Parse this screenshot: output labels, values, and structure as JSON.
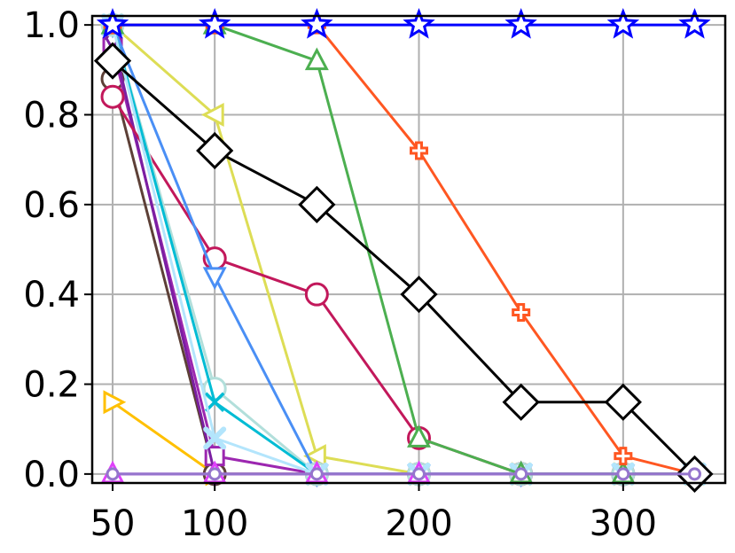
{
  "chart_data": {
    "type": "line",
    "title": "",
    "xlabel": "",
    "ylabel": "",
    "xlim": [
      40,
      350
    ],
    "ylim": [
      -0.02,
      1.02
    ],
    "grid": true,
    "xticks": [
      50,
      100,
      200,
      300
    ],
    "xtick_labels": [
      "50",
      "100",
      "200",
      "300"
    ],
    "yticks": [
      0.0,
      0.2,
      0.4,
      0.6,
      0.8,
      1.0
    ],
    "ytick_labels": [
      "0.0",
      "0.2",
      "0.4",
      "0.6",
      "0.8",
      "1.0"
    ],
    "series": [
      {
        "color": "#dddd55",
        "marker": "triangle-left",
        "x": [
          50,
          100,
          150,
          200,
          250,
          300,
          335
        ],
        "y": [
          1.0,
          0.8,
          0.04,
          0.0,
          0.0,
          0.0,
          0.0
        ]
      },
      {
        "color": "#ffc000",
        "marker": "triangle-right",
        "x": [
          50,
          100,
          150,
          200,
          250,
          300,
          335
        ],
        "y": [
          0.16,
          0.0,
          0.0,
          0.0,
          0.0,
          0.0,
          0.0
        ]
      },
      {
        "color": "#5d4037",
        "marker": "circle",
        "x": [
          50,
          100,
          150,
          200,
          250,
          300,
          335
        ],
        "y": [
          0.88,
          0.0,
          0.0,
          0.0,
          0.0,
          0.0,
          0.0
        ]
      },
      {
        "color": "#9c27b0",
        "marker": "square",
        "x": [
          50,
          100,
          150,
          200,
          250,
          300,
          335
        ],
        "y": [
          0.95,
          0.04,
          0.0,
          0.0,
          0.0,
          0.0,
          0.0
        ]
      },
      {
        "color": "#7b1fa2",
        "marker": "thin-diamond",
        "x": [
          50,
          100,
          150,
          200,
          250,
          300,
          335
        ],
        "y": [
          0.97,
          0.0,
          0.0,
          0.0,
          0.0,
          0.0,
          0.0
        ]
      },
      {
        "color": "#c2185b",
        "marker": "circle",
        "x": [
          50,
          100,
          150,
          200,
          250,
          300,
          335
        ],
        "y": [
          0.84,
          0.48,
          0.4,
          0.08,
          0.0,
          0.0,
          0.0
        ]
      },
      {
        "color": "#4a8ff5",
        "marker": "triangle-down",
        "x": [
          50,
          100,
          150,
          200,
          250,
          300,
          335
        ],
        "y": [
          1.0,
          0.44,
          0.0,
          0.0,
          0.0,
          0.0,
          0.0
        ]
      },
      {
        "color": "#b2dfdb",
        "marker": "circle",
        "x": [
          50,
          100,
          150,
          200,
          250,
          300,
          335
        ],
        "y": [
          1.0,
          0.19,
          0.0,
          0.0,
          0.0,
          0.0,
          0.0
        ]
      },
      {
        "color": "#00bcd4",
        "marker": "x",
        "x": [
          50,
          100,
          150,
          200,
          250,
          300,
          335
        ],
        "y": [
          1.0,
          0.16,
          0.0,
          0.0,
          0.0,
          0.0,
          0.0
        ]
      },
      {
        "color": "#b3e5fc",
        "marker": "x-thick",
        "x": [
          50,
          100,
          150,
          200,
          250,
          300,
          335
        ],
        "y": [
          1.0,
          0.08,
          0.0,
          0.0,
          0.0,
          0.0,
          0.0
        ]
      },
      {
        "color": "#607d8b",
        "marker": "none",
        "x": [
          50,
          100,
          150,
          200,
          250,
          300,
          335
        ],
        "y": [
          0.0,
          0.0,
          0.0,
          0.0,
          0.0,
          0.0,
          0.0
        ]
      },
      {
        "color": "#e040fb",
        "marker": "triangle-up",
        "x": [
          50,
          100,
          150,
          200,
          250,
          300,
          335
        ],
        "y": [
          0.0,
          0.0,
          0.0,
          0.0,
          0.0,
          0.0,
          0.0
        ]
      },
      {
        "color": "#4caf50",
        "marker": "triangle-up",
        "x": [
          50,
          100,
          150,
          200,
          250,
          300,
          335
        ],
        "y": [
          1.0,
          1.0,
          0.92,
          0.08,
          0.0,
          0.0,
          0.0
        ]
      },
      {
        "color": "#ff5722",
        "marker": "plus",
        "x": [
          50,
          100,
          150,
          200,
          250,
          300,
          335
        ],
        "y": [
          1.0,
          1.0,
          1.0,
          0.72,
          0.36,
          0.04,
          0.0
        ]
      },
      {
        "color": "#000000",
        "marker": "diamond",
        "x": [
          50,
          100,
          150,
          200,
          250,
          300,
          335
        ],
        "y": [
          0.92,
          0.72,
          0.6,
          0.4,
          0.16,
          0.16,
          0.0
        ]
      },
      {
        "color": "#0000ff",
        "marker": "star",
        "x": [
          50,
          100,
          150,
          200,
          250,
          300,
          335
        ],
        "y": [
          1.0,
          1.0,
          1.0,
          1.0,
          1.0,
          1.0,
          1.0
        ]
      },
      {
        "color": "#9575cd",
        "marker": "small-circle",
        "x": [
          50,
          100,
          150,
          200,
          250,
          300,
          335
        ],
        "y": [
          0.0,
          0.0,
          0.0,
          0.0,
          0.0,
          0.0,
          0.0
        ]
      }
    ]
  }
}
